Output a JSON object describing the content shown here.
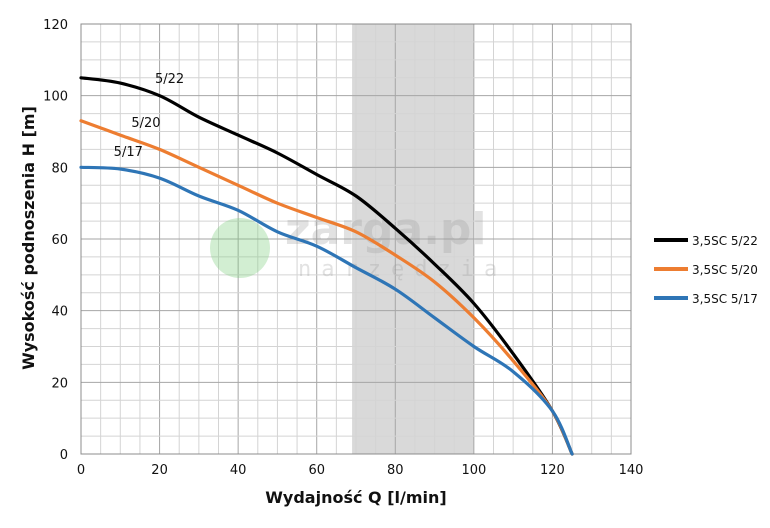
{
  "watermark": {
    "brand": "zarga.pl",
    "tagline": "narzędzia"
  },
  "chart_data": {
    "type": "line",
    "xlabel": "Wydajność Q [l/min]",
    "ylabel": "Wysokość podnoszenia H [m]",
    "xlim": [
      0,
      140
    ],
    "ylim": [
      0,
      120
    ],
    "x_ticks": [
      0,
      20,
      40,
      60,
      80,
      100,
      120,
      140
    ],
    "y_ticks": [
      0,
      20,
      40,
      60,
      80,
      100,
      120
    ],
    "grid": true,
    "legend_position": "right",
    "highlight_band": {
      "x_from": 69,
      "x_to": 100,
      "color": "#d9d9d9"
    },
    "series": [
      {
        "name": "3,5SC 5/22",
        "curve_label": "5/22",
        "color": "#000000",
        "points": [
          [
            0,
            105
          ],
          [
            10,
            103.5
          ],
          [
            20,
            100
          ],
          [
            30,
            94
          ],
          [
            40,
            89
          ],
          [
            50,
            84
          ],
          [
            60,
            78
          ],
          [
            70,
            72
          ],
          [
            80,
            63
          ],
          [
            90,
            53
          ],
          [
            100,
            42
          ],
          [
            110,
            28
          ],
          [
            120,
            12
          ],
          [
            125,
            0
          ]
        ]
      },
      {
        "name": "3,5SC 5/20",
        "curve_label": "5/20",
        "color": "#ed7d31",
        "points": [
          [
            0,
            93
          ],
          [
            10,
            89
          ],
          [
            20,
            85
          ],
          [
            30,
            80
          ],
          [
            40,
            75
          ],
          [
            50,
            70
          ],
          [
            60,
            66
          ],
          [
            70,
            62
          ],
          [
            80,
            55.5
          ],
          [
            90,
            48
          ],
          [
            100,
            38
          ],
          [
            110,
            26
          ],
          [
            120,
            12
          ],
          [
            125,
            0
          ]
        ]
      },
      {
        "name": "3,5SC 5/17",
        "curve_label": "5/17",
        "color": "#2e75b6",
        "points": [
          [
            0,
            80
          ],
          [
            10,
            79.5
          ],
          [
            20,
            77
          ],
          [
            30,
            72
          ],
          [
            40,
            68
          ],
          [
            50,
            62
          ],
          [
            60,
            58
          ],
          [
            70,
            52
          ],
          [
            80,
            46
          ],
          [
            90,
            38
          ],
          [
            100,
            30
          ],
          [
            110,
            23
          ],
          [
            120,
            12
          ],
          [
            125,
            0
          ]
        ]
      }
    ]
  }
}
